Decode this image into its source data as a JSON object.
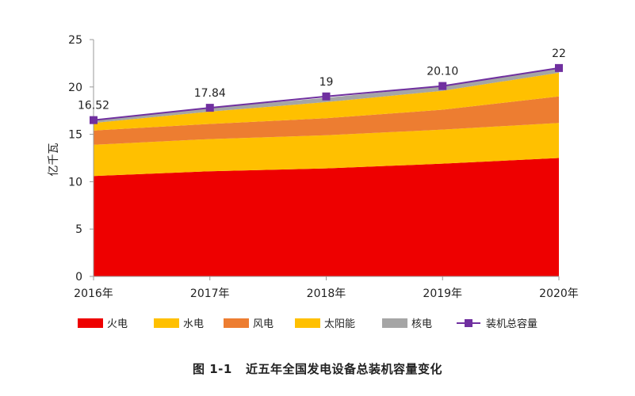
{
  "caption": "图 1-1   近五年全国发电设备总装机容量变化",
  "chart_data": {
    "type": "area",
    "stacked": true,
    "title": "",
    "xlabel": "",
    "ylabel": "亿千瓦",
    "ylim": [
      0,
      25
    ],
    "yticks": [
      "0",
      "5",
      "10",
      "15",
      "20",
      "25"
    ],
    "categories": [
      "2016年",
      "2017年",
      "2018年",
      "2019年",
      "2020年"
    ],
    "series": [
      {
        "name": "火电",
        "values": [
          10.6,
          11.1,
          11.4,
          11.9,
          12.5
        ],
        "color": "#ee0000"
      },
      {
        "name": "水电",
        "values": [
          3.3,
          3.4,
          3.5,
          3.6,
          3.7
        ],
        "color": "#ffc000"
      },
      {
        "name": "风电",
        "values": [
          1.5,
          1.6,
          1.8,
          2.1,
          2.8
        ],
        "color": "#ed7d31"
      },
      {
        "name": "太阳能",
        "values": [
          0.8,
          1.3,
          1.7,
          2.0,
          2.5
        ],
        "color": "#ffc000"
      },
      {
        "name": "核电",
        "values": [
          0.3,
          0.4,
          0.45,
          0.5,
          0.5
        ],
        "color": "#a5a5a5"
      }
    ],
    "line_series": {
      "name": "装机总容量",
      "values": [
        16.5,
        17.8,
        19.0,
        20.1,
        22.0
      ],
      "labels": [
        "16.52",
        "17.84",
        "19",
        "20.10",
        "22"
      ],
      "color": "#7030a0"
    },
    "legend_position": "bottom"
  }
}
